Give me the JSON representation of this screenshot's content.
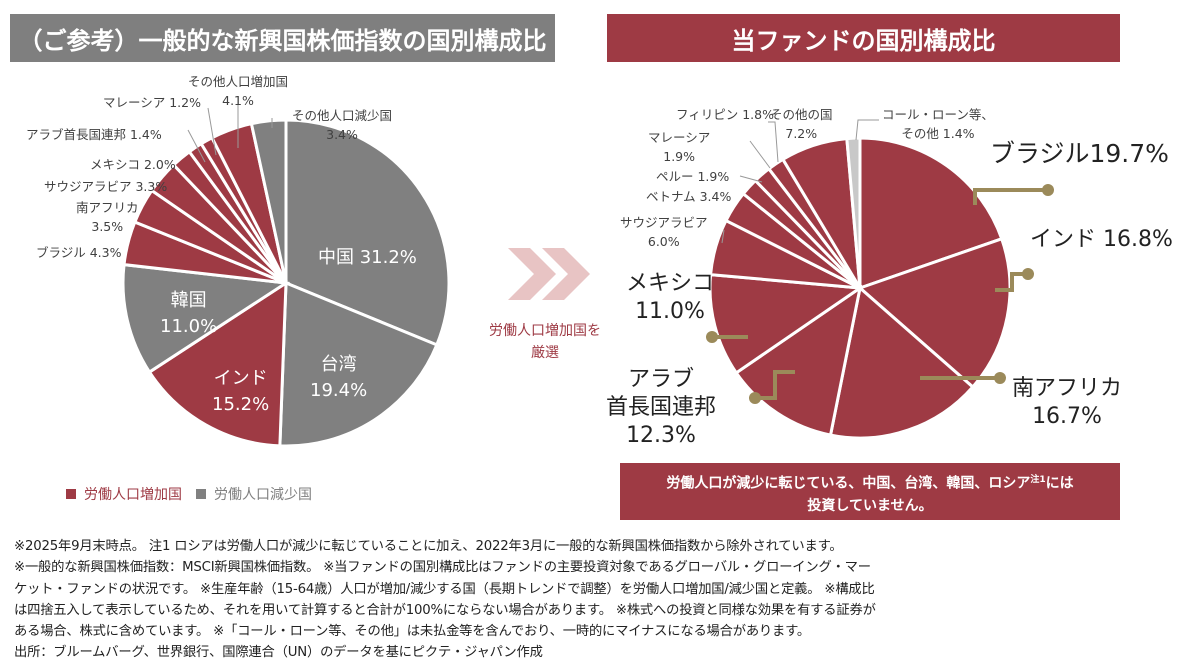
{
  "colors": {
    "increase": "#9e3a44",
    "decrease": "#808080",
    "cash": "#c8c8c8",
    "leader": "#9b8a5a",
    "arrow": "#e8c4c4"
  },
  "left": {
    "title": "（ご参考）一般的な新興国株価指数の国別構成比"
  },
  "right": {
    "title": "当ファンドの国別構成比"
  },
  "arrow_text": [
    "労働人口増加国を",
    "厳選"
  ],
  "legend": [
    {
      "label": "労働人口増加国",
      "color": "#9e3a44"
    },
    {
      "label": "労働人口減少国",
      "color": "#808080"
    }
  ],
  "notice": [
    "労働人口が減少に転じている、中国、台湾、韓国、ロシア",
    "注1",
    "には",
    "投資していません。"
  ],
  "chart_data": [
    {
      "type": "pie",
      "title": "（ご参考）一般的な新興国株価指数の国別構成比",
      "unit": "%",
      "slices": [
        {
          "label": "中国",
          "value": 31.2,
          "group": "decrease"
        },
        {
          "label": "台湾",
          "value": 19.4,
          "group": "decrease"
        },
        {
          "label": "インド",
          "value": 15.2,
          "group": "increase"
        },
        {
          "label": "韓国",
          "value": 11.0,
          "group": "decrease"
        },
        {
          "label": "ブラジル",
          "value": 4.3,
          "group": "increase"
        },
        {
          "label": "南アフリカ",
          "value": 3.5,
          "group": "increase"
        },
        {
          "label": "サウジアラビア",
          "value": 3.3,
          "group": "increase"
        },
        {
          "label": "メキシコ",
          "value": 2.0,
          "group": "increase"
        },
        {
          "label": "アラブ首長国連邦",
          "value": 1.4,
          "group": "increase"
        },
        {
          "label": "マレーシア",
          "value": 1.2,
          "group": "increase"
        },
        {
          "label": "その他人口増加国",
          "value": 4.1,
          "group": "increase"
        },
        {
          "label": "その他人口減少国",
          "value": 3.4,
          "group": "decrease"
        }
      ]
    },
    {
      "type": "pie",
      "title": "当ファンドの国別構成比",
      "unit": "%",
      "slices": [
        {
          "label": "ブラジル",
          "value": 19.7,
          "group": "increase"
        },
        {
          "label": "インド",
          "value": 16.8,
          "group": "increase"
        },
        {
          "label": "南アフリカ",
          "value": 16.7,
          "group": "increase"
        },
        {
          "label": "アラブ首長国連邦",
          "value": 12.3,
          "group": "increase"
        },
        {
          "label": "メキシコ",
          "value": 11.0,
          "group": "increase"
        },
        {
          "label": "サウジアラビア",
          "value": 6.0,
          "group": "increase"
        },
        {
          "label": "ベトナム",
          "value": 3.4,
          "group": "increase"
        },
        {
          "label": "ペルー",
          "value": 1.9,
          "group": "increase"
        },
        {
          "label": "マレーシア",
          "value": 1.9,
          "group": "increase"
        },
        {
          "label": "フィリピン",
          "value": 1.8,
          "group": "increase"
        },
        {
          "label": "その他の国",
          "value": 7.2,
          "group": "increase"
        },
        {
          "label": "コール・ローン等、その他",
          "value": 1.4,
          "group": "cash"
        }
      ]
    }
  ],
  "labels": {
    "l_china": "中国 31.2%",
    "l_taiwan": [
      "台湾",
      "19.4%"
    ],
    "l_india": [
      "インド",
      "15.2%"
    ],
    "l_korea": [
      "韓国",
      "11.0%"
    ],
    "l_brazil": "ブラジル 4.3%",
    "l_sa": [
      "南アフリカ",
      "3.5%"
    ],
    "l_saudi": "サウジアラビア 3.3%",
    "l_mex": "メキシコ 2.0%",
    "l_uae": "アラブ首長国連邦 1.4%",
    "l_my": "マレーシア 1.2%",
    "l_oinc": [
      "その他人口増加国",
      "4.1%"
    ],
    "l_odec": [
      "その他人口減少国",
      "3.4%"
    ],
    "r_brazil": "ブラジル19.7%",
    "r_india": "インド 16.8%",
    "r_sa": [
      "南アフリカ",
      "16.7%"
    ],
    "r_uae": [
      "アラブ",
      "首長国連邦",
      "12.3%"
    ],
    "r_mex": [
      "メキシコ",
      "11.0%"
    ],
    "r_saudi": [
      "サウジアラビア",
      "6.0%"
    ],
    "r_vn": "ベトナム 3.4%",
    "r_pe": "ペルー 1.9%",
    "r_my": [
      "マレーシア",
      "1.9%"
    ],
    "r_ph": "フィリピン 1.8%",
    "r_oth": [
      "その他の国",
      "7.2%"
    ],
    "r_cash": [
      "コール・ローン等、",
      "その他 1.4%"
    ]
  },
  "footnotes": [
    "※2025年9月末時点。 注1 ロシアは労働人口が減少に転じていることに加え、2022年3月に一般的な新興国株価指数から除外されています。",
    "※一般的な新興国株価指数：MSCI新興国株価指数。 ※当ファンドの国別構成比はファンドの主要投資対象であるグローバル・グローイング・マー",
    "ケット・ファンドの状況です。 ※生産年齢（15-64歳）人口が増加/減少する国（長期トレンドで調整）を労働人口増加国/減少国と定義。 ※構成比",
    "は四捨五入して表示しているため、それを用いて計算すると合計が100%にならない場合があります。 ※株式への投資と同様な効果を有する証券が",
    "ある場合、株式に含めています。 ※「コール・ローン等、その他」は未払金等を含んでおり、一時的にマイナスになる場合があります。",
    "出所：ブルームバーグ、世界銀行、国際連合（UN）のデータを基にピクテ・ジャパン作成"
  ]
}
